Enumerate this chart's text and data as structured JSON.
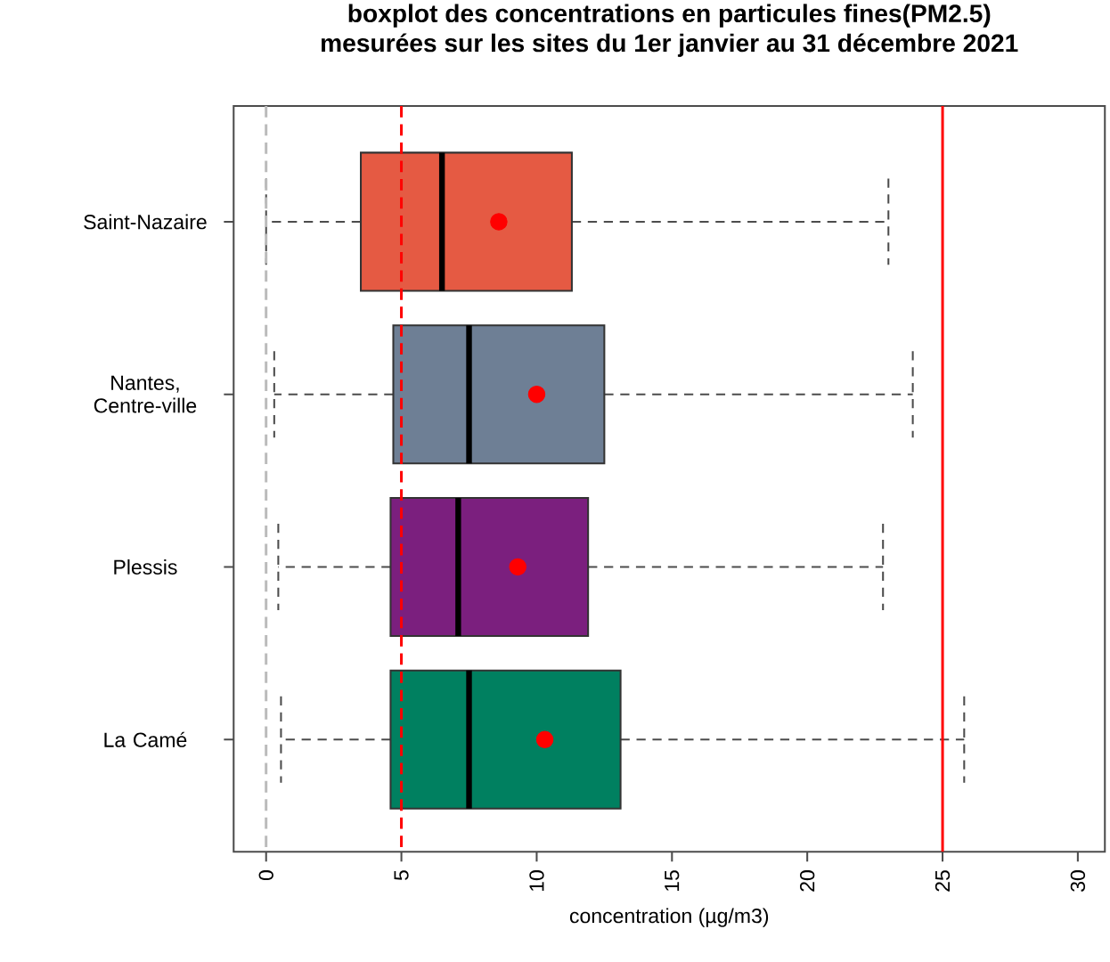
{
  "chart_data": {
    "type": "box",
    "orientation": "horizontal",
    "title": "boxplot des concentrations  en particules fines(PM2.5)",
    "subtitle": "mesurées sur les sites du 1er janvier au 31 décembre 2021",
    "xlabel": "concentration (µg/m3)",
    "categories": [
      "Saint-Nazaire",
      "Nantes, Centre-ville",
      "Plessis",
      "La Camé"
    ],
    "colors": [
      "#e55a43",
      "#6e7f95",
      "#7b1f7e",
      "#008060"
    ],
    "boxes": [
      {
        "low": 0.0,
        "q1": 3.5,
        "median": 6.5,
        "q3": 11.3,
        "high": 23.0,
        "mean": 8.6
      },
      {
        "low": 0.3,
        "q1": 4.7,
        "median": 7.5,
        "q3": 12.5,
        "high": 23.9,
        "mean": 10.0
      },
      {
        "low": 0.45,
        "q1": 4.6,
        "median": 7.1,
        "q3": 11.9,
        "high": 22.8,
        "mean": 9.3
      },
      {
        "low": 0.55,
        "q1": 4.6,
        "median": 7.5,
        "q3": 13.1,
        "high": 25.8,
        "mean": 10.3
      }
    ],
    "xlim": [
      -1.2,
      31
    ],
    "xticks": [
      0,
      5,
      10,
      15,
      20,
      25,
      30
    ],
    "ref_lines": [
      {
        "axis": "x",
        "value": 0,
        "color": "#bbbbbb",
        "line_style": "dashed"
      },
      {
        "axis": "x",
        "value": 5,
        "color": "#ff0000",
        "line_style": "dashed"
      },
      {
        "axis": "x",
        "value": 25,
        "color": "#ff0000",
        "line_style": "solid"
      }
    ]
  }
}
